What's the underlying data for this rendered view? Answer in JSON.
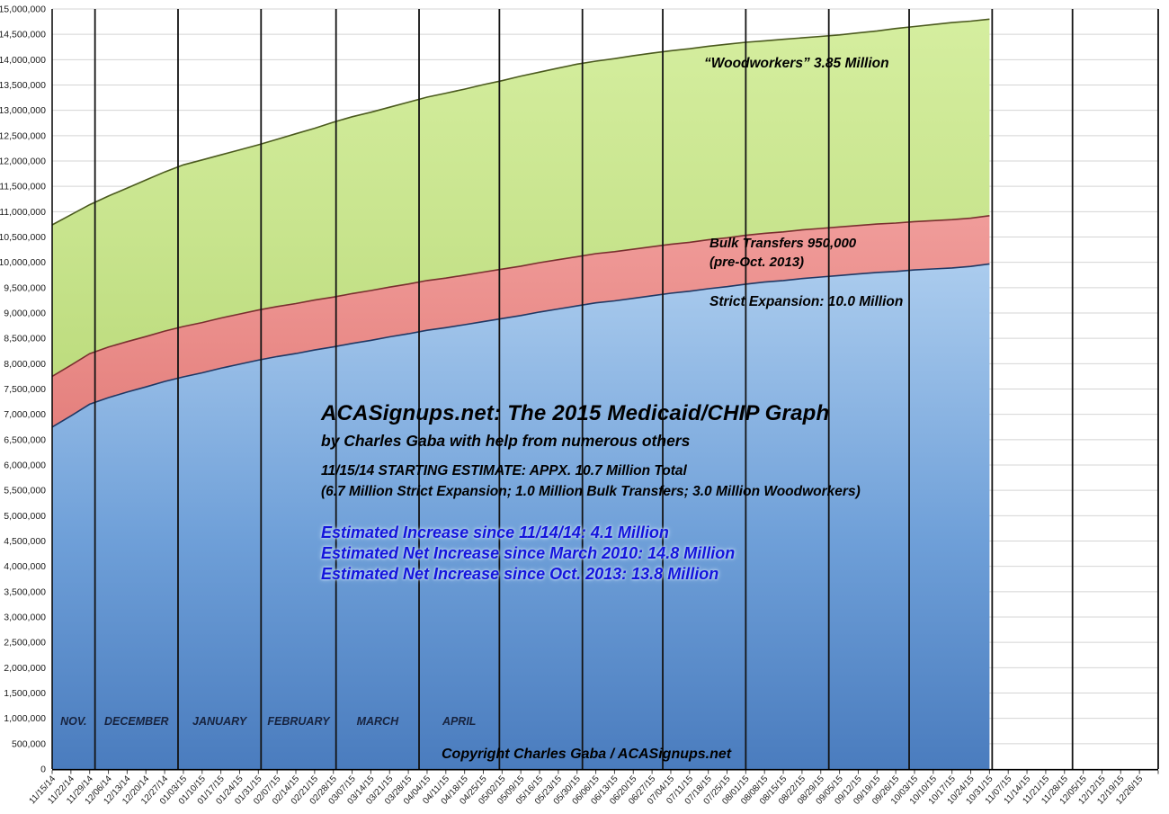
{
  "chart_data": {
    "type": "area",
    "stacked": true,
    "grid": true,
    "legend_position": "none",
    "ylim": [
      0,
      15000000
    ],
    "ytick_interval": 500000,
    "value_unit": "millions",
    "x_labels": [
      "11/15/14",
      "11/22/14",
      "11/29/14",
      "12/06/14",
      "12/13/14",
      "12/20/14",
      "12/27/14",
      "01/03/15",
      "01/10/15",
      "01/17/15",
      "01/24/15",
      "01/31/15",
      "02/07/15",
      "02/14/15",
      "02/21/15",
      "02/28/15",
      "03/07/15",
      "03/14/15",
      "03/21/15",
      "03/28/15",
      "04/04/15",
      "04/11/15",
      "04/18/15",
      "04/25/15",
      "05/02/15",
      "05/09/15",
      "05/16/15",
      "05/23/15",
      "05/30/15",
      "06/06/15",
      "06/13/15",
      "06/20/15",
      "06/27/15",
      "07/04/15",
      "07/11/15",
      "07/18/15",
      "07/25/15",
      "08/01/15",
      "08/08/15",
      "08/15/15",
      "08/22/15",
      "08/29/15",
      "09/05/15",
      "09/12/15",
      "09/19/15",
      "09/26/15",
      "10/03/15",
      "10/10/15",
      "10/17/15",
      "10/24/15",
      "10/31/15",
      "11/07/15",
      "11/14/15",
      "11/21/15",
      "11/28/15",
      "12/05/15",
      "12/12/15",
      "12/19/15",
      "12/26/15"
    ],
    "series": [
      {
        "name": "Strict Expansion",
        "label": "Strict Expansion: 10.0 Million",
        "fill_top": "#abccee",
        "fill_mid": "#6e9fd8",
        "fill_bottom": "#4a7cbe",
        "line": "#1f3864",
        "values_millions": [
          6.75,
          6.97,
          7.2,
          7.33,
          7.44,
          7.54,
          7.65,
          7.74,
          7.82,
          7.91,
          7.99,
          8.07,
          8.14,
          8.2,
          8.27,
          8.33,
          8.4,
          8.46,
          8.53,
          8.59,
          8.66,
          8.71,
          8.77,
          8.83,
          8.89,
          8.95,
          9.02,
          9.08,
          9.14,
          9.2,
          9.24,
          9.29,
          9.34,
          9.39,
          9.43,
          9.48,
          9.52,
          9.57,
          9.61,
          9.64,
          9.68,
          9.71,
          9.74,
          9.77,
          9.8,
          9.82,
          9.85,
          9.87,
          9.89,
          9.92,
          9.97
        ]
      },
      {
        "name": "Bulk Transfers",
        "label": "Bulk Transfers 950,000 (pre-Oct. 2013)",
        "fill_top": "#f09c9a",
        "fill_mid": "#ea8d8a",
        "fill_bottom": "#e4807d",
        "line": "#7a2f2f",
        "values_millions": [
          1.0,
          0.999,
          0.998,
          0.997,
          0.996,
          0.995,
          0.994,
          0.993,
          0.992,
          0.991,
          0.99,
          0.989,
          0.988,
          0.987,
          0.986,
          0.985,
          0.984,
          0.983,
          0.982,
          0.981,
          0.98,
          0.979,
          0.978,
          0.977,
          0.976,
          0.975,
          0.974,
          0.973,
          0.972,
          0.971,
          0.97,
          0.969,
          0.968,
          0.967,
          0.966,
          0.965,
          0.964,
          0.963,
          0.962,
          0.961,
          0.96,
          0.959,
          0.958,
          0.957,
          0.956,
          0.955,
          0.954,
          0.953,
          0.952,
          0.951,
          0.95
        ]
      },
      {
        "name": "Woodworkers",
        "label": "“Woodworkers” 3.85 Million",
        "fill_top": "#d5ee9f",
        "fill_mid": "#c9e58f",
        "fill_bottom": "#bddc7e",
        "line": "#4b5a1e",
        "values_millions": [
          2.99,
          2.97,
          2.94,
          2.98,
          3.03,
          3.09,
          3.14,
          3.19,
          3.21,
          3.22,
          3.24,
          3.26,
          3.3,
          3.35,
          3.39,
          3.45,
          3.49,
          3.52,
          3.55,
          3.59,
          3.62,
          3.65,
          3.67,
          3.7,
          3.72,
          3.75,
          3.76,
          3.78,
          3.8,
          3.8,
          3.81,
          3.82,
          3.82,
          3.82,
          3.82,
          3.82,
          3.82,
          3.81,
          3.8,
          3.8,
          3.79,
          3.79,
          3.79,
          3.8,
          3.81,
          3.84,
          3.85,
          3.87,
          3.89,
          3.89,
          3.88
        ]
      }
    ],
    "month_boundaries_days": [
      16,
      47,
      78,
      106,
      137,
      167,
      198,
      228,
      259,
      290,
      320,
      351,
      381
    ],
    "month_labels": [
      {
        "text": "NOV.",
        "day": 8
      },
      {
        "text": "DECEMBER",
        "day": 31.5
      },
      {
        "text": "JANUARY",
        "day": 62.5
      },
      {
        "text": "FEBRUARY",
        "day": 92
      },
      {
        "text": "MARCH",
        "day": 121.5
      },
      {
        "text": "APRIL",
        "day": 152
      }
    ],
    "colors": {
      "gridline": "#d4d4d4",
      "month_line": "#131313",
      "axis": "#000000",
      "tick": "#444444",
      "axis_label": "#1a1a1a",
      "month_label": "#17233f"
    }
  },
  "annotations": {
    "title": "ACASignups.net: The 2015 Medicaid/CHIP Graph",
    "byline": "by Charles Gaba with help from numerous others",
    "estimate_line1": "11/15/14 STARTING ESTIMATE: APPX. 10.7 Million Total",
    "estimate_line2": "(6.7 Million Strict Expansion; 1.0 Million Bulk Transfers; 3.0 Million Woodworkers)",
    "increase_line1": "Estimated Increase since 11/14/14: 4.1 Million",
    "increase_line2": "Estimated Net Increase since March 2010: 14.8 Million",
    "increase_line3": "Estimated Net Increase since Oct. 2013: 13.8 Million",
    "woodworkers_label": "“Woodworkers” 3.85 Million",
    "bulk_label_line1": "Bulk Transfers 950,000",
    "bulk_label_line2": "(pre-Oct. 2013)",
    "strict_label": "Strict Expansion: 10.0 Million",
    "copyright": "Copyright Charles Gaba / ACASignups.net"
  }
}
